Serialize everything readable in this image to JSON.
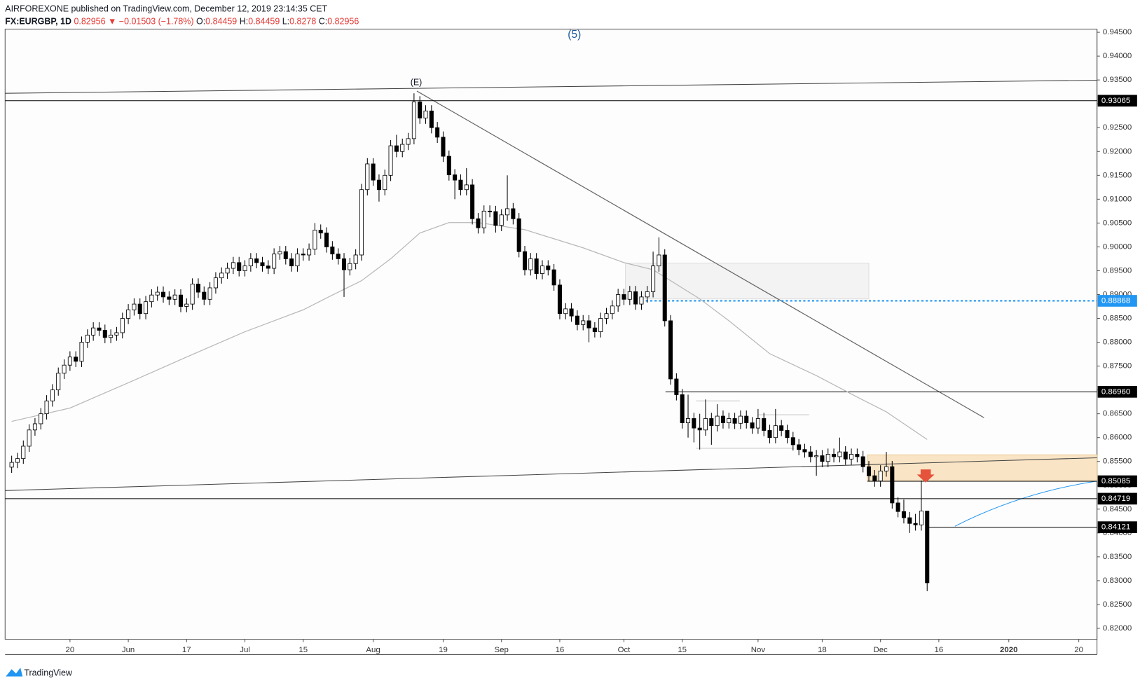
{
  "header": {
    "publisher": "AIRFOREXONE published on TradingView.com, December 12, 2019 23:14:35 CET",
    "symbol": "FX:EURGBP, 1D",
    "arrow": "▼",
    "change": "−0.01503 (−1.78%)",
    "open_label": "O:",
    "high_label": "H:",
    "low_label": "L:",
    "close_label": "C:"
  },
  "footer": {
    "brand": "TradingView"
  },
  "chart_data": {
    "type": "candlestick",
    "annotations": [
      "(E)",
      "(5)"
    ],
    "up_color": "#ffffff",
    "down_color": "#000000",
    "wick_color": "#000000",
    "ylim": [
      0.81771,
      0.94535
    ],
    "yticks": [
      {
        "value": 0.82,
        "label": "0.82000"
      },
      {
        "value": 0.825,
        "label": "0.82500"
      },
      {
        "value": 0.83,
        "label": "0.83000"
      },
      {
        "value": 0.835,
        "label": "0.83500"
      },
      {
        "value": 0.84,
        "label": "0.84000"
      },
      {
        "value": 0.845,
        "label": "0.84500"
      },
      {
        "value": 0.85,
        "label": "0.85000"
      },
      {
        "value": 0.855,
        "label": "0.85500"
      },
      {
        "value": 0.86,
        "label": "0.86000"
      },
      {
        "value": 0.865,
        "label": "0.86500"
      },
      {
        "value": 0.87,
        "label": "0.87000"
      },
      {
        "value": 0.875,
        "label": "0.87500"
      },
      {
        "value": 0.88,
        "label": "0.88000"
      },
      {
        "value": 0.885,
        "label": "0.88500"
      },
      {
        "value": 0.89,
        "label": "0.89000"
      },
      {
        "value": 0.895,
        "label": "0.89500"
      },
      {
        "value": 0.9,
        "label": "0.90000"
      },
      {
        "value": 0.905,
        "label": "0.90500"
      },
      {
        "value": 0.91,
        "label": "0.91000"
      },
      {
        "value": 0.915,
        "label": "0.91500"
      },
      {
        "value": 0.92,
        "label": "0.92000"
      },
      {
        "value": 0.925,
        "label": "0.92500"
      },
      {
        "value": 0.93,
        "label": "0.93000"
      },
      {
        "value": 0.935,
        "label": "0.93500"
      },
      {
        "value": 0.94,
        "label": "0.94000"
      },
      {
        "value": 0.945,
        "label": "0.94500"
      }
    ],
    "xticks": [
      {
        "value": 10,
        "label": "20"
      },
      {
        "value": 20,
        "label": "Jun"
      },
      {
        "value": 30,
        "label": "17"
      },
      {
        "value": 40,
        "label": "Jul"
      },
      {
        "value": 50,
        "label": "15"
      },
      {
        "value": 62,
        "label": "Aug"
      },
      {
        "value": 74,
        "label": "19"
      },
      {
        "value": 84,
        "label": "Sep"
      },
      {
        "value": 94,
        "label": "16"
      },
      {
        "value": 105,
        "label": "Oct"
      },
      {
        "value": 115,
        "label": "15"
      },
      {
        "value": 128,
        "label": "Nov"
      },
      {
        "value": 139,
        "label": "18"
      },
      {
        "value": 149,
        "label": "Dec"
      },
      {
        "value": 159,
        "label": "16"
      },
      {
        "value": 171,
        "label": "2020"
      },
      {
        "value": 183,
        "label": "20"
      }
    ],
    "levels": [
      0.93065,
      0.88868,
      {
        "value": 0.8696,
        "label": "0.86960"
      },
      0.85085,
      0.84719,
      0.84121
    ],
    "level_colors": [
      "#000000",
      "#2196f3",
      "#000000",
      "#000000",
      "#000000",
      "#000000"
    ],
    "level_styles": [
      "solid",
      "dashed",
      "solid",
      "solid",
      "solid",
      "solid"
    ],
    "ma": {
      "color": "#b8b8b8",
      "x": [
        0,
        10,
        20,
        30,
        40,
        50,
        55,
        60,
        65,
        70,
        75,
        80,
        88,
        98,
        105,
        110,
        118,
        123,
        130,
        138,
        145,
        150,
        157
      ],
      "values": [
        0.8634,
        0.8662,
        0.8715,
        0.8769,
        0.8822,
        0.8868,
        0.8899,
        0.8929,
        0.8975,
        0.9029,
        0.9051,
        0.9051,
        0.9036,
        0.8998,
        0.8967,
        0.8952,
        0.8891,
        0.8845,
        0.8776,
        0.873,
        0.8685,
        0.8654,
        0.8596
      ]
    },
    "candles": [
      [
        0.8538,
        0.8562,
        0.8526,
        0.8548
      ],
      [
        0.8548,
        0.8568,
        0.8536,
        0.8556
      ],
      [
        0.8556,
        0.8594,
        0.8545,
        0.8582
      ],
      [
        0.8582,
        0.8628,
        0.857,
        0.8616
      ],
      [
        0.8616,
        0.8641,
        0.8604,
        0.8629
      ],
      [
        0.8629,
        0.8662,
        0.8617,
        0.865
      ],
      [
        0.865,
        0.8689,
        0.8638,
        0.8677
      ],
      [
        0.8677,
        0.8712,
        0.8665,
        0.87
      ],
      [
        0.87,
        0.8747,
        0.8688,
        0.8735
      ],
      [
        0.8735,
        0.8764,
        0.8723,
        0.8752
      ],
      [
        0.8752,
        0.8781,
        0.874,
        0.8769
      ],
      [
        0.8769,
        0.8781,
        0.8748,
        0.876
      ],
      [
        0.876,
        0.8812,
        0.8748,
        0.88
      ],
      [
        0.88,
        0.8827,
        0.8788,
        0.8815
      ],
      [
        0.8815,
        0.8842,
        0.8803,
        0.883
      ],
      [
        0.883,
        0.8842,
        0.8813,
        0.8825
      ],
      [
        0.8825,
        0.8837,
        0.8798,
        0.881
      ],
      [
        0.881,
        0.8827,
        0.8798,
        0.8815
      ],
      [
        0.8815,
        0.8832,
        0.8803,
        0.882
      ],
      [
        0.882,
        0.8862,
        0.8808,
        0.885
      ],
      [
        0.885,
        0.888,
        0.8838,
        0.8868
      ],
      [
        0.8868,
        0.8892,
        0.8856,
        0.888
      ],
      [
        0.888,
        0.8892,
        0.8848,
        0.886
      ],
      [
        0.886,
        0.8897,
        0.8848,
        0.8885
      ],
      [
        0.8885,
        0.8911,
        0.8873,
        0.8899
      ],
      [
        0.8899,
        0.8917,
        0.8887,
        0.8905
      ],
      [
        0.8905,
        0.8917,
        0.8883,
        0.8895
      ],
      [
        0.8895,
        0.8907,
        0.8878,
        0.889
      ],
      [
        0.889,
        0.8911,
        0.8878,
        0.8899
      ],
      [
        0.8899,
        0.8911,
        0.8863,
        0.8875
      ],
      [
        0.8875,
        0.8892,
        0.8863,
        0.888
      ],
      [
        0.888,
        0.8934,
        0.8868,
        0.8922
      ],
      [
        0.8922,
        0.8934,
        0.8893,
        0.8905
      ],
      [
        0.8905,
        0.8917,
        0.8878,
        0.889
      ],
      [
        0.889,
        0.8926,
        0.8878,
        0.8914
      ],
      [
        0.8914,
        0.8947,
        0.8902,
        0.8935
      ],
      [
        0.8935,
        0.8957,
        0.8923,
        0.8945
      ],
      [
        0.8945,
        0.8967,
        0.8933,
        0.8955
      ],
      [
        0.8955,
        0.8979,
        0.8943,
        0.8967
      ],
      [
        0.8967,
        0.8979,
        0.8938,
        0.895
      ],
      [
        0.895,
        0.8972,
        0.8938,
        0.896
      ],
      [
        0.896,
        0.8987,
        0.8948,
        0.8975
      ],
      [
        0.8975,
        0.8987,
        0.8955,
        0.8967
      ],
      [
        0.8967,
        0.8979,
        0.8948,
        0.896
      ],
      [
        0.896,
        0.8972,
        0.8943,
        0.8955
      ],
      [
        0.8955,
        0.8997,
        0.8943,
        0.8985
      ],
      [
        0.8985,
        0.9002,
        0.8973,
        0.899
      ],
      [
        0.899,
        0.9002,
        0.8963,
        0.8975
      ],
      [
        0.8975,
        0.8987,
        0.8948,
        0.896
      ],
      [
        0.896,
        0.8997,
        0.8948,
        0.8985
      ],
      [
        0.8985,
        0.8997,
        0.8971,
        0.8983
      ],
      [
        0.8983,
        0.9007,
        0.8971,
        0.8995
      ],
      [
        0.8995,
        0.905,
        0.8983,
        0.9035
      ],
      [
        0.9035,
        0.9047,
        0.9017,
        0.9029
      ],
      [
        0.9029,
        0.9041,
        0.8988,
        0.9
      ],
      [
        0.9,
        0.9012,
        0.8973,
        0.8985
      ],
      [
        0.8985,
        0.8997,
        0.8963,
        0.8975
      ],
      [
        0.8975,
        0.8987,
        0.8895,
        0.8952
      ],
      [
        0.8952,
        0.8977,
        0.894,
        0.8965
      ],
      [
        0.8965,
        0.8995,
        0.8953,
        0.8983
      ],
      [
        0.8983,
        0.9132,
        0.8971,
        0.912
      ],
      [
        0.912,
        0.9186,
        0.9108,
        0.9174
      ],
      [
        0.9174,
        0.9186,
        0.9128,
        0.914
      ],
      [
        0.914,
        0.9152,
        0.9095,
        0.912
      ],
      [
        0.912,
        0.9162,
        0.9108,
        0.915
      ],
      [
        0.915,
        0.9224,
        0.9138,
        0.9212
      ],
      [
        0.9212,
        0.9235,
        0.9188,
        0.92
      ],
      [
        0.92,
        0.9227,
        0.9188,
        0.9215
      ],
      [
        0.9215,
        0.9239,
        0.9203,
        0.9227
      ],
      [
        0.9227,
        0.9322,
        0.9215,
        0.9304
      ],
      [
        0.9304,
        0.9316,
        0.9258,
        0.927
      ],
      [
        0.927,
        0.9297,
        0.9258,
        0.9285
      ],
      [
        0.9285,
        0.9297,
        0.9238,
        0.925
      ],
      [
        0.925,
        0.9262,
        0.9218,
        0.923
      ],
      [
        0.923,
        0.9242,
        0.9178,
        0.919
      ],
      [
        0.919,
        0.9202,
        0.9139,
        0.9151
      ],
      [
        0.9151,
        0.9163,
        0.91,
        0.914
      ],
      [
        0.914,
        0.9152,
        0.9108,
        0.912
      ],
      [
        0.912,
        0.9165,
        0.9108,
        0.913
      ],
      [
        0.913,
        0.9142,
        0.9047,
        0.9059
      ],
      [
        0.9059,
        0.9071,
        0.9028,
        0.904
      ],
      [
        0.904,
        0.9087,
        0.9028,
        0.9075
      ],
      [
        0.9075,
        0.9087,
        0.9062,
        0.9074
      ],
      [
        0.9074,
        0.9086,
        0.903,
        0.9045
      ],
      [
        0.9045,
        0.9079,
        0.9033,
        0.9067
      ],
      [
        0.9067,
        0.915,
        0.9055,
        0.908
      ],
      [
        0.908,
        0.9092,
        0.9047,
        0.9059
      ],
      [
        0.9059,
        0.9071,
        0.8978,
        0.899
      ],
      [
        0.899,
        0.9002,
        0.894,
        0.8952
      ],
      [
        0.8952,
        0.8987,
        0.894,
        0.8975
      ],
      [
        0.8975,
        0.8987,
        0.8932,
        0.8944
      ],
      [
        0.8944,
        0.8972,
        0.8932,
        0.896
      ],
      [
        0.896,
        0.8972,
        0.894,
        0.8952
      ],
      [
        0.8952,
        0.8964,
        0.8908,
        0.892
      ],
      [
        0.892,
        0.8932,
        0.8848,
        0.886
      ],
      [
        0.886,
        0.8882,
        0.8848,
        0.887
      ],
      [
        0.887,
        0.8882,
        0.8843,
        0.8855
      ],
      [
        0.8855,
        0.8867,
        0.8825,
        0.8837
      ],
      [
        0.8837,
        0.8857,
        0.8825,
        0.8845
      ],
      [
        0.8845,
        0.8857,
        0.88,
        0.883
      ],
      [
        0.883,
        0.8842,
        0.881,
        0.8822
      ],
      [
        0.8822,
        0.8862,
        0.881,
        0.885
      ],
      [
        0.885,
        0.8872,
        0.8838,
        0.886
      ],
      [
        0.886,
        0.8888,
        0.8848,
        0.8876
      ],
      [
        0.8876,
        0.8912,
        0.8864,
        0.89
      ],
      [
        0.89,
        0.8912,
        0.8878,
        0.889
      ],
      [
        0.889,
        0.8918,
        0.8878,
        0.8906
      ],
      [
        0.8906,
        0.8918,
        0.8868,
        0.888
      ],
      [
        0.888,
        0.8907,
        0.8868,
        0.8895
      ],
      [
        0.8895,
        0.8918,
        0.8883,
        0.8906
      ],
      [
        0.8906,
        0.899,
        0.8894,
        0.896
      ],
      [
        0.896,
        0.902,
        0.8948,
        0.8983
      ],
      [
        0.8983,
        0.8995,
        0.8833,
        0.8845
      ],
      [
        0.8845,
        0.8857,
        0.8711,
        0.8723
      ],
      [
        0.8723,
        0.8735,
        0.8678,
        0.869
      ],
      [
        0.869,
        0.8702,
        0.8619,
        0.8631
      ],
      [
        0.8631,
        0.869,
        0.86,
        0.864
      ],
      [
        0.864,
        0.8652,
        0.859,
        0.862
      ],
      [
        0.862,
        0.865,
        0.8575,
        0.8616
      ],
      [
        0.8616,
        0.868,
        0.8604,
        0.864
      ],
      [
        0.864,
        0.8652,
        0.8585,
        0.8625
      ],
      [
        0.8625,
        0.867,
        0.8613,
        0.8645
      ],
      [
        0.8645,
        0.8657,
        0.8619,
        0.8631
      ],
      [
        0.8631,
        0.8652,
        0.8619,
        0.864
      ],
      [
        0.864,
        0.8652,
        0.8618,
        0.863
      ],
      [
        0.863,
        0.8657,
        0.8618,
        0.8645
      ],
      [
        0.8645,
        0.8657,
        0.8619,
        0.8631
      ],
      [
        0.8631,
        0.8643,
        0.8608,
        0.862
      ],
      [
        0.862,
        0.866,
        0.8608,
        0.864
      ],
      [
        0.864,
        0.8652,
        0.8603,
        0.8615
      ],
      [
        0.8615,
        0.8627,
        0.8588,
        0.86
      ],
      [
        0.86,
        0.866,
        0.8588,
        0.8625
      ],
      [
        0.8625,
        0.8637,
        0.8603,
        0.8615
      ],
      [
        0.8615,
        0.8627,
        0.8588,
        0.86
      ],
      [
        0.86,
        0.8612,
        0.8573,
        0.8585
      ],
      [
        0.8585,
        0.8597,
        0.8563,
        0.8575
      ],
      [
        0.8575,
        0.8587,
        0.8558,
        0.857
      ],
      [
        0.857,
        0.8582,
        0.8548,
        0.856
      ],
      [
        0.856,
        0.8574,
        0.852,
        0.8562
      ],
      [
        0.8562,
        0.8574,
        0.8538,
        0.855
      ],
      [
        0.855,
        0.8577,
        0.8538,
        0.8565
      ],
      [
        0.8565,
        0.8577,
        0.8548,
        0.856
      ],
      [
        0.856,
        0.86,
        0.8548,
        0.857
      ],
      [
        0.857,
        0.8582,
        0.8543,
        0.8555
      ],
      [
        0.8555,
        0.8577,
        0.8543,
        0.8565
      ],
      [
        0.8565,
        0.8577,
        0.8548,
        0.856
      ],
      [
        0.856,
        0.8572,
        0.8527,
        0.8539
      ],
      [
        0.8539,
        0.8551,
        0.8508,
        0.852
      ],
      [
        0.852,
        0.8532,
        0.8497,
        0.8509
      ],
      [
        0.8509,
        0.8542,
        0.8497,
        0.853
      ],
      [
        0.853,
        0.857,
        0.8518,
        0.8539
      ],
      [
        0.8539,
        0.8551,
        0.8451,
        0.8463
      ],
      [
        0.8463,
        0.8475,
        0.8433,
        0.8445
      ],
      [
        0.8445,
        0.847,
        0.842,
        0.8432
      ],
      [
        0.8432,
        0.8444,
        0.84,
        0.842
      ],
      [
        0.842,
        0.844,
        0.8405,
        0.8417
      ],
      [
        0.8417,
        0.851,
        0.8405,
        0.84459
      ],
      [
        0.84459,
        0.84459,
        0.8278,
        0.82956
      ]
    ]
  }
}
